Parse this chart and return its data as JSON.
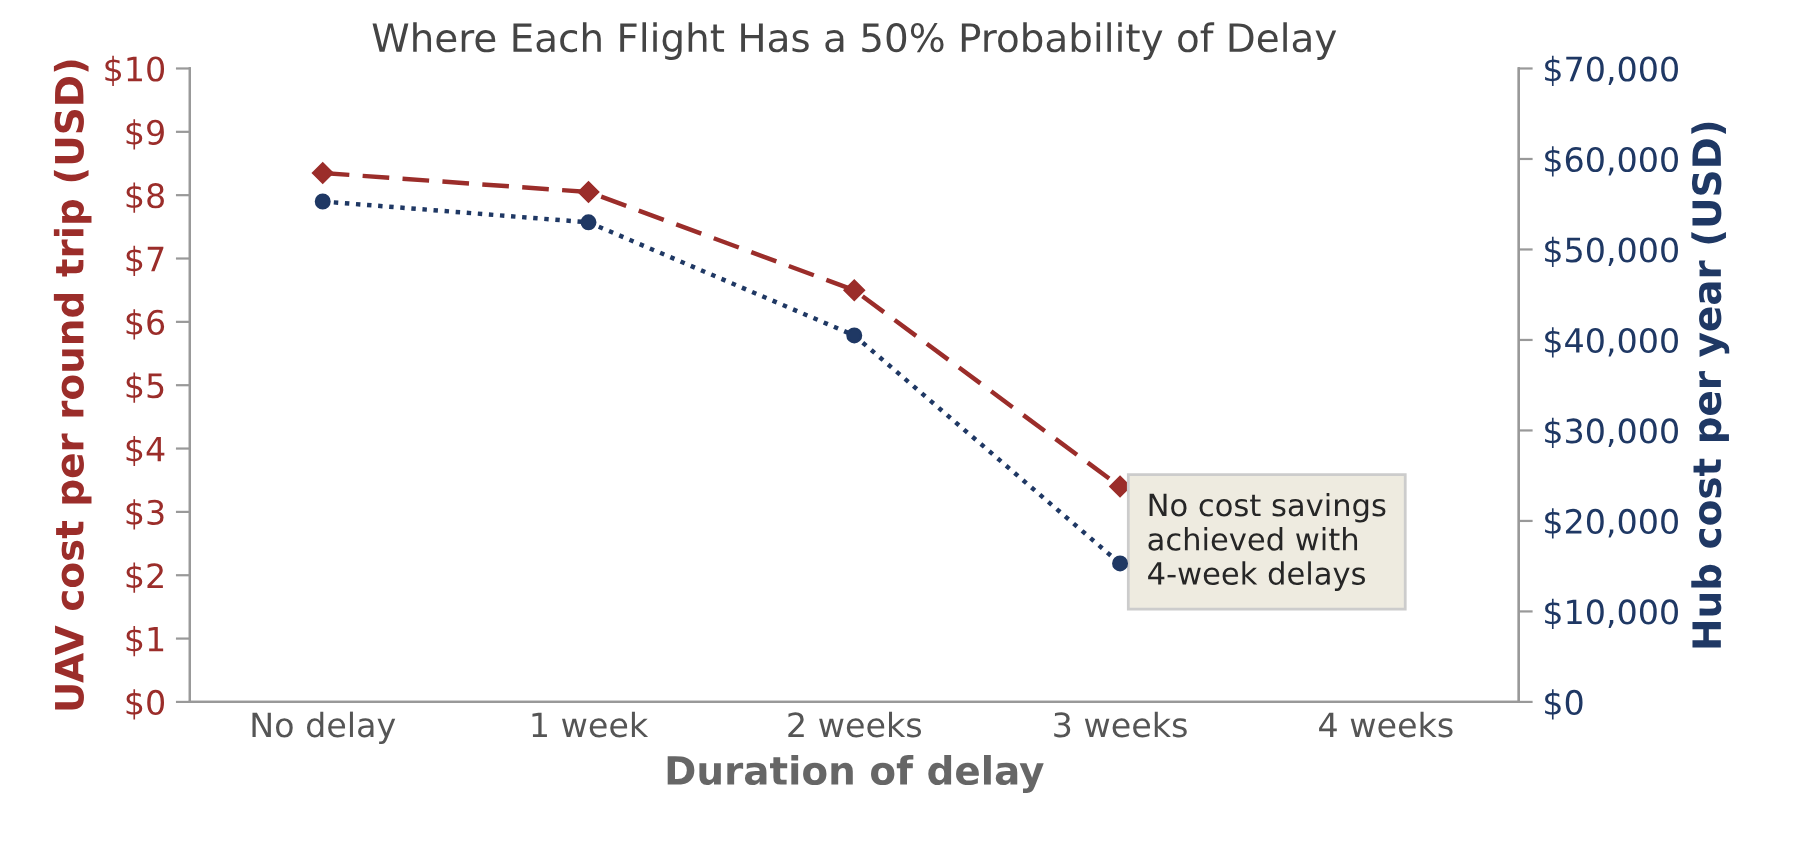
{
  "chart_data": {
    "type": "line",
    "title": "Where Each Flight Has a 50% Probability of Delay",
    "xlabel": "Duration of delay",
    "ylabel": "UAV cost per round trip (USD)",
    "y2label": "Hub cost per year (USD)",
    "categories": [
      "No delay",
      "1 week",
      "2 weeks",
      "3 weeks",
      "4 weeks"
    ],
    "series": [
      {
        "color": "#9b2d2a",
        "values": [
          8.35,
          8.05,
          6.5,
          3.4,
          null
        ],
        "marker": "diamond",
        "line_style": "dashed"
      },
      {
        "color": "#1f3864",
        "values": [
          55300,
          53000,
          40500,
          15300,
          null
        ],
        "axis": "y2",
        "marker": "circle",
        "line_style": "dotted"
      }
    ],
    "ylim": [
      0,
      10
    ],
    "yticks": [
      {
        "value": 0,
        "label": "$0"
      },
      {
        "value": 1,
        "label": "$1"
      },
      {
        "value": 2,
        "label": "$2"
      },
      {
        "value": 3,
        "label": "$3"
      },
      {
        "value": 4,
        "label": "$4"
      },
      {
        "value": 5,
        "label": "$5"
      },
      {
        "value": 6,
        "label": "$6"
      },
      {
        "value": 7,
        "label": "$7"
      },
      {
        "value": 8,
        "label": "$8"
      },
      {
        "value": 9,
        "label": "$9"
      },
      {
        "value": 10,
        "label": "$10"
      }
    ],
    "y2lim": [
      0,
      70000
    ],
    "y2ticks": [
      {
        "value": 0,
        "label": "$0"
      },
      {
        "value": 10000,
        "label": "$10,000"
      },
      {
        "value": 20000,
        "label": "$20,000"
      },
      {
        "value": 30000,
        "label": "$30,000"
      },
      {
        "value": 40000,
        "label": "$40,000"
      },
      {
        "value": 50000,
        "label": "$50,000"
      },
      {
        "value": 60000,
        "label": "$60,000"
      },
      {
        "value": 70000,
        "label": "$70,000"
      }
    ],
    "annotations": [
      "No cost savings\nachieved with\n4-week delays"
    ],
    "grid": false,
    "legend": false
  }
}
